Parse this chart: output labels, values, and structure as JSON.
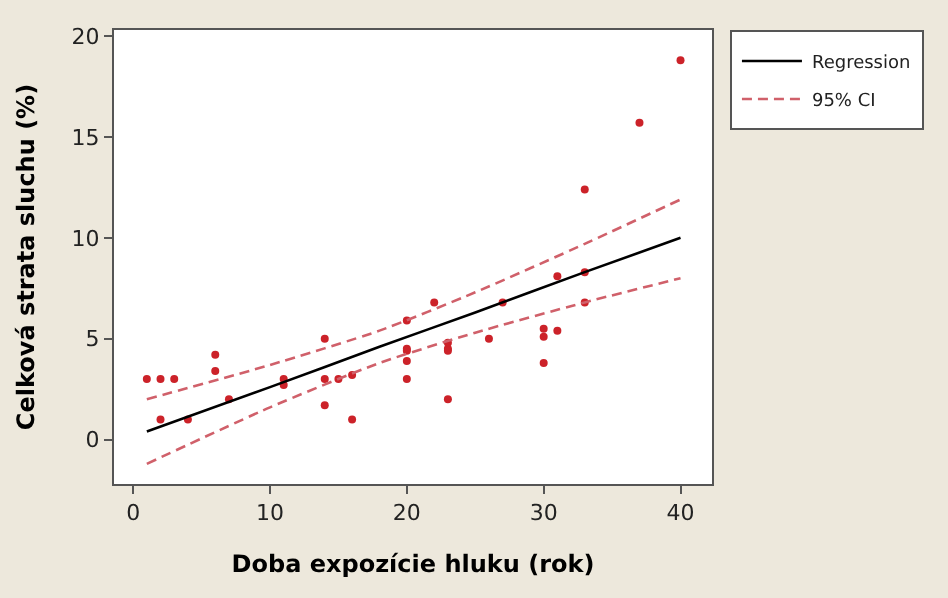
{
  "chart_data": {
    "type": "scatter",
    "xlabel": "Doba expozície hluku (rok)",
    "ylabel": "Celková strata sluchu (%)",
    "xlim": [
      -1.4,
      42.3
    ],
    "ylim": [
      -2.2,
      20.3
    ],
    "xticks": [
      0,
      10,
      20,
      30,
      40
    ],
    "yticks": [
      0,
      5,
      10,
      15,
      20
    ],
    "legend": "top right",
    "series": [
      {
        "marker": "circle",
        "color": "#cc2229",
        "x": [
          1,
          2,
          3,
          2,
          4,
          6,
          6,
          7,
          11,
          11,
          14,
          14,
          14,
          15,
          16,
          16,
          20,
          20,
          20,
          20,
          20,
          22,
          23,
          23,
          23,
          23,
          26,
          27,
          30,
          30,
          30,
          31,
          31,
          33,
          33,
          33,
          37,
          40
        ],
        "values": [
          3,
          3,
          3,
          1,
          1,
          4.2,
          3.4,
          2,
          3,
          2.7,
          5,
          3,
          1.7,
          3,
          3.2,
          1,
          5.9,
          4.5,
          4.4,
          3.9,
          3,
          6.8,
          4.8,
          4.5,
          4.4,
          2,
          5,
          6.8,
          5.5,
          5.1,
          3.8,
          8.1,
          5.4,
          12.4,
          8.3,
          6.8,
          15.7,
          18.8
        ]
      },
      {
        "type": "line",
        "name": "Regression",
        "color": "#000000",
        "line_style": "solid",
        "x": [
          1,
          10,
          18,
          25,
          33,
          40
        ],
        "values": [
          0.4,
          2.6,
          4.6,
          6.3,
          8.3,
          10
        ]
      },
      {
        "type": "line",
        "name": "95% CI",
        "color": "#d0606a",
        "line_style": "dashed",
        "x": [
          1,
          10,
          18,
          25,
          33,
          40
        ],
        "values": [
          2,
          3.7,
          5.4,
          7.3,
          9.7,
          11.9
        ]
      },
      {
        "type": "line",
        "color": "#d0606a",
        "line_style": "dashed",
        "x": [
          1,
          10,
          18,
          25,
          33,
          40
        ],
        "values": [
          -1.2,
          1.6,
          3.8,
          5.3,
          6.8,
          8
        ]
      }
    ]
  }
}
